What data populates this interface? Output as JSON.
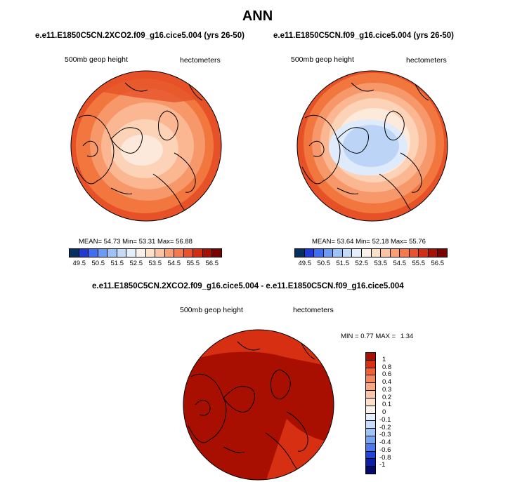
{
  "title": "ANN",
  "panels": [
    {
      "case_title": "e.e11.E1850C5CN.2XCO2.f09_g16.cice5.004 (yrs 26-50)",
      "variable": "500mb geop height",
      "units": "hectometers",
      "mean_label": "MEAN=",
      "mean": "54.73",
      "min_label": "Min=",
      "min": "53.31",
      "max_label": "Max=",
      "max": "56.88"
    },
    {
      "case_title": "e.e11.E1850C5CN.f09_g16.cice5.004 (yrs 26-50)",
      "variable": "500mb geop height",
      "units": "hectometers",
      "mean_label": "MEAN=",
      "mean": "53.64",
      "min_label": "Min=",
      "min": "52.18",
      "max_label": "Max=",
      "max": "55.76"
    }
  ],
  "colorbar_levels": [
    "49.5",
    "50.5",
    "51.5",
    "52.5",
    "53.5",
    "54.5",
    "55.5",
    "56.5"
  ],
  "colorbar_colors": [
    "#053061",
    "#1f3bd6",
    "#3f6ef0",
    "#6a9cf3",
    "#9cc3f7",
    "#c5dcf8",
    "#e5effb",
    "#fcf1e8",
    "#fde0c8",
    "#fcc4a0",
    "#f9a072",
    "#f57a4b",
    "#e9522a",
    "#d32c12",
    "#a61004",
    "#7a0000"
  ],
  "difference": {
    "title": "e.e11.E1850C5CN.2XCO2.f09_g16.cice5.004 - e.e11.E1850C5CN.f09_g16.cice5.004",
    "variable": "500mb geop height",
    "units": "hectometers",
    "min_label": "MIN =",
    "min": "0.77",
    "max_label": "MAX =",
    "max": "1.34",
    "colorbar_levels": [
      "1",
      "0.8",
      "0.6",
      "0.4",
      "0.3",
      "0.2",
      "0.1",
      "0",
      "-0.1",
      "-0.2",
      "-0.3",
      "-0.4",
      "-0.6",
      "-0.8",
      "-1"
    ],
    "colorbar_colors": [
      "#a80f00",
      "#d72f12",
      "#f06030",
      "#f6875a",
      "#faa783",
      "#fcc5a8",
      "#fde0cc",
      "#fdf3ea",
      "#e5efff",
      "#c7ddfb",
      "#9ec3f6",
      "#74a4f2",
      "#4a78ee",
      "#2143d8",
      "#0a1fa6",
      "#020a70"
    ]
  }
}
